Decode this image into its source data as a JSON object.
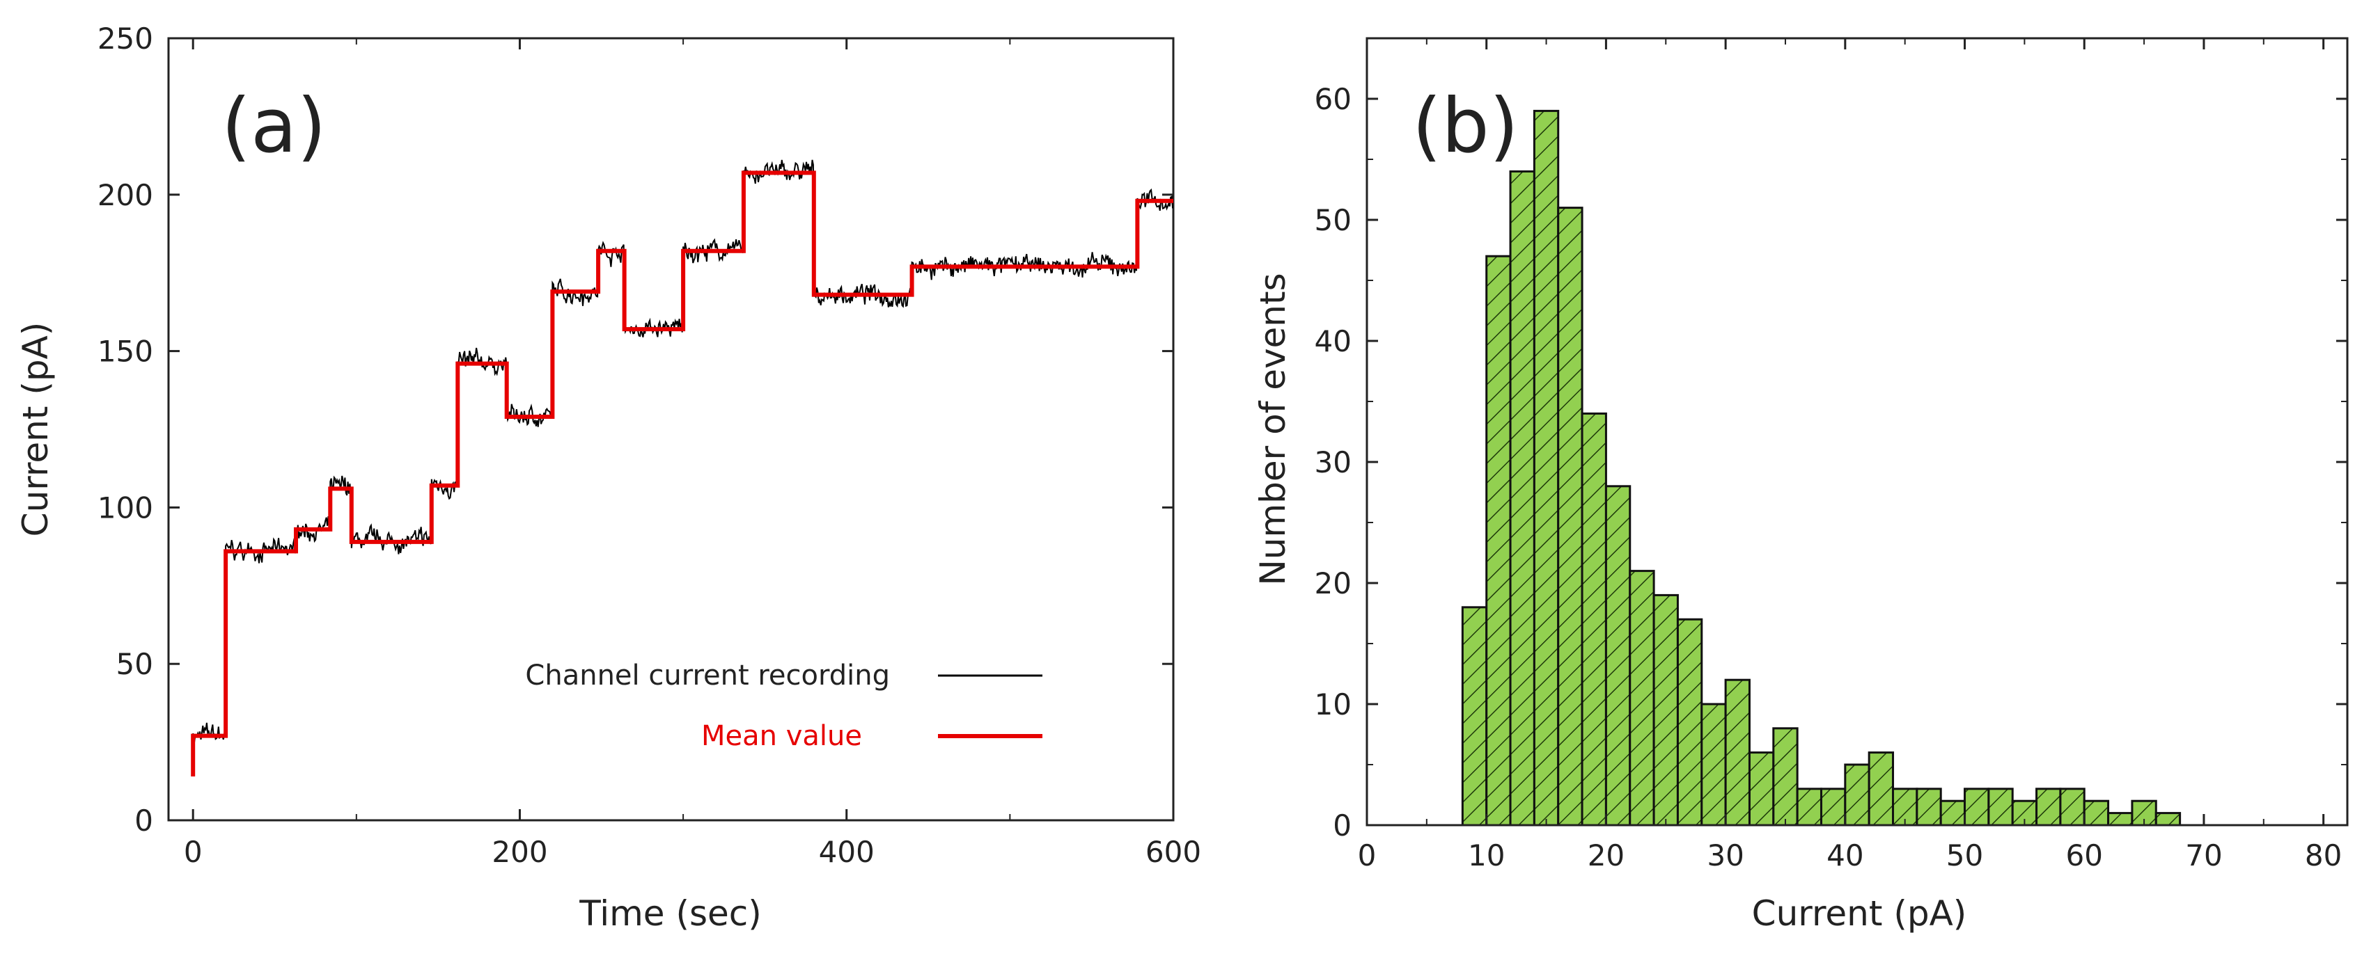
{
  "chart_data": [
    {
      "panel_label": "(a)",
      "type": "line",
      "xlabel": "Time (sec)",
      "ylabel": "Current (pA)",
      "xlim": [
        -15,
        600
      ],
      "ylim": [
        0,
        250
      ],
      "xticks": [
        0,
        200,
        400,
        600
      ],
      "yticks": [
        0,
        50,
        100,
        150,
        200,
        250
      ],
      "legend_position": "bottom-right",
      "series": [
        {
          "name": "Channel current recording",
          "color": "#000000",
          "note": "noisy trace following the mean-value steps",
          "mean_levels": [
            {
              "x0": 0,
              "x1": 20,
              "y": 27
            },
            {
              "x0": 20,
              "x1": 63,
              "y": 86
            },
            {
              "x0": 63,
              "x1": 84,
              "y": 93
            },
            {
              "x0": 84,
              "x1": 97,
              "y": 106
            },
            {
              "x0": 97,
              "x1": 146,
              "y": 89
            },
            {
              "x0": 146,
              "x1": 162,
              "y": 107
            },
            {
              "x0": 162,
              "x1": 192,
              "y": 146
            },
            {
              "x0": 192,
              "x1": 220,
              "y": 129
            },
            {
              "x0": 220,
              "x1": 248,
              "y": 169
            },
            {
              "x0": 248,
              "x1": 264,
              "y": 182
            },
            {
              "x0": 264,
              "x1": 300,
              "y": 157
            },
            {
              "x0": 300,
              "x1": 337,
              "y": 182
            },
            {
              "x0": 337,
              "x1": 380,
              "y": 207
            },
            {
              "x0": 380,
              "x1": 440,
              "y": 168
            },
            {
              "x0": 440,
              "x1": 578,
              "y": 177
            },
            {
              "x0": 578,
              "x1": 600,
              "y": 198
            }
          ]
        },
        {
          "name": "Mean value",
          "color": "#e60000",
          "start_y": 14,
          "steps": [
            {
              "x": 0,
              "y": 27
            },
            {
              "x": 20,
              "y": 86
            },
            {
              "x": 63,
              "y": 93
            },
            {
              "x": 84,
              "y": 106
            },
            {
              "x": 97,
              "y": 89
            },
            {
              "x": 146,
              "y": 107
            },
            {
              "x": 162,
              "y": 146
            },
            {
              "x": 192,
              "y": 129
            },
            {
              "x": 220,
              "y": 169
            },
            {
              "x": 248,
              "y": 182
            },
            {
              "x": 264,
              "y": 157
            },
            {
              "x": 300,
              "y": 182
            },
            {
              "x": 337,
              "y": 207
            },
            {
              "x": 380,
              "y": 168
            },
            {
              "x": 440,
              "y": 177
            },
            {
              "x": 578,
              "y": 198
            },
            {
              "x": 600,
              "y": 198
            }
          ]
        }
      ]
    },
    {
      "panel_label": "(b)",
      "type": "bar",
      "subtype": "histogram",
      "xlabel": "Current (pA)",
      "ylabel": "Number of events",
      "xlim": [
        0,
        82
      ],
      "ylim": [
        0,
        65
      ],
      "xticks": [
        0,
        10,
        20,
        30,
        40,
        50,
        60,
        70,
        80
      ],
      "yticks": [
        0,
        10,
        20,
        30,
        40,
        50,
        60
      ],
      "bin_width": 2,
      "bin_start": 8,
      "fill_color": "#92d050",
      "hatch": "diagonal",
      "values": [
        18,
        47,
        54,
        59,
        51,
        34,
        28,
        21,
        19,
        17,
        10,
        12,
        6,
        8,
        3,
        3,
        5,
        6,
        3,
        3,
        2,
        3,
        3,
        2,
        3,
        3,
        2,
        1,
        2,
        1
      ]
    }
  ]
}
